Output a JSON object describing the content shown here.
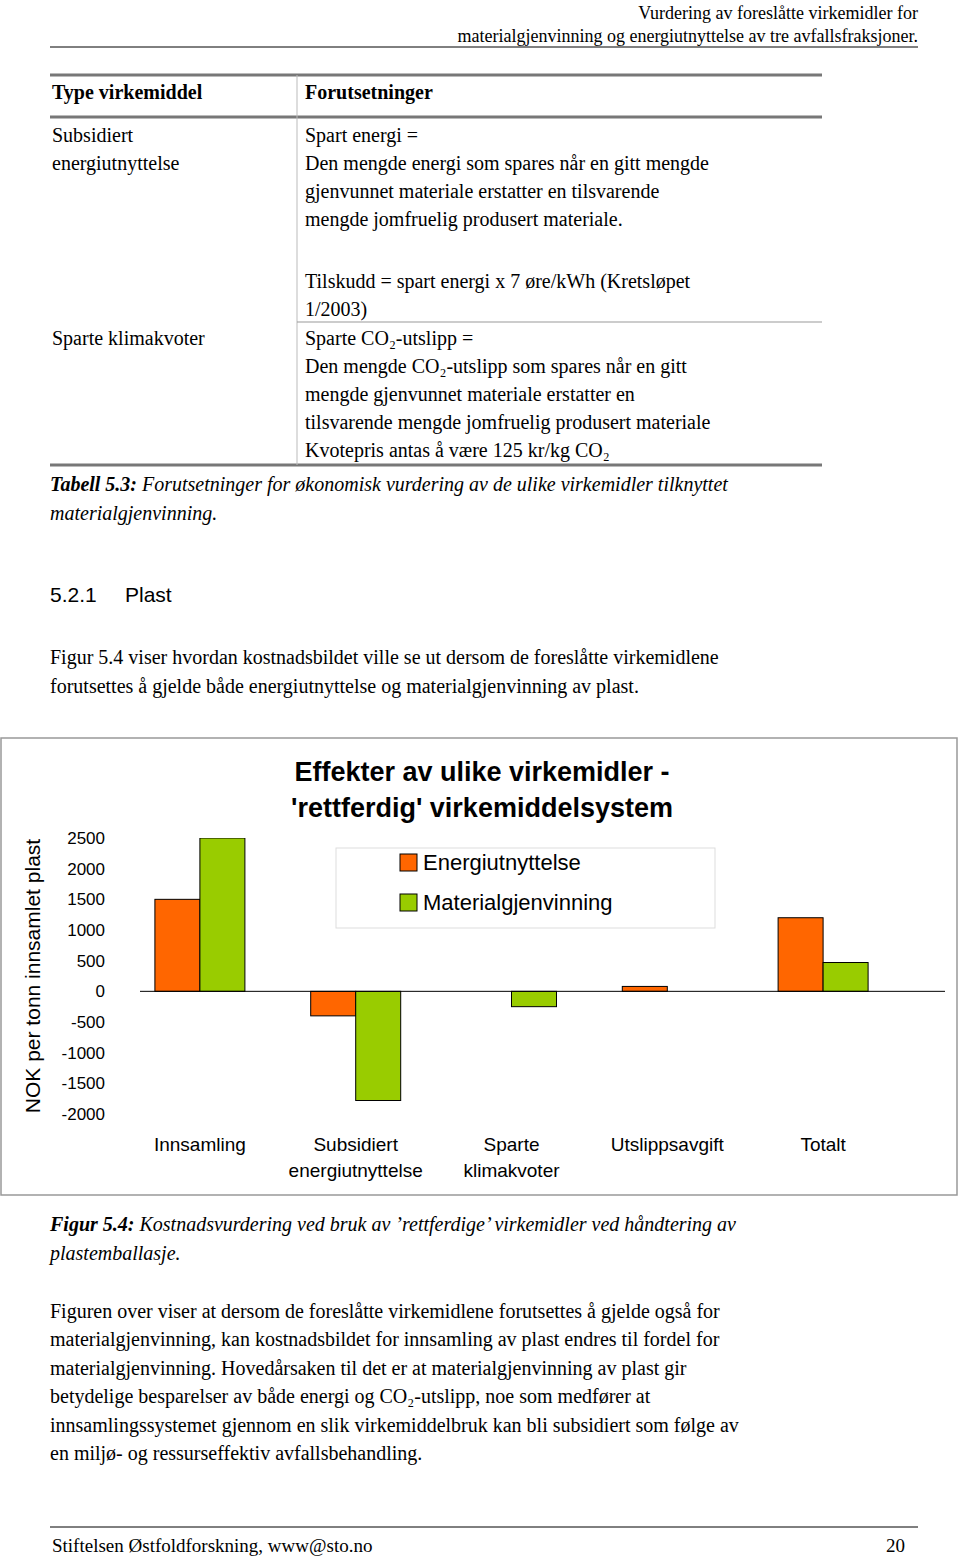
{
  "header": {
    "lines": [
      "Vurdering av foreslåtte virkemidler for",
      "materialgjenvinning og energiutnyttelse av tre avfallsfraksjoner."
    ]
  },
  "table": {
    "headers": [
      "Type virkemiddel",
      "Forutsetninger"
    ],
    "rows": [
      {
        "type": [
          "Subsidiert",
          "energiutnyttelse"
        ],
        "conditions": [
          [
            "Spart energi =",
            "Den mengde energi som spares når en gitt mengde",
            "gjenvunnet materiale erstatter en tilsvarende",
            "mengde jomfruelig produsert materiale."
          ],
          [
            "Tilskudd = spart energi x 7 øre/kWh (Kretsløpet",
            "1/2003)"
          ]
        ]
      },
      {
        "type": [
          "Sparte klimakvoter"
        ],
        "conditions": [
          [
            "Sparte CO₂-utslipp =",
            "Den mengde CO₂-utslipp som spares når en gitt",
            "mengde gjenvunnet materiale erstatter en",
            "tilsvarende mengde jomfruelig produsert materiale",
            "Kvotepris antas å være 125 kr/kg CO₂"
          ]
        ]
      }
    ]
  },
  "table_caption": {
    "label": "Tabell 5.3:",
    "lines": [
      "Forutsetninger for økonomisk vurdering av de ulike virkemidler tilknyttet",
      "materialgjenvinning."
    ]
  },
  "section": {
    "number": "5.2.1",
    "title": "Plast"
  },
  "intro": {
    "lines": [
      "Figur 5.4 viser hvordan kostnadsbildet ville se ut dersom de foreslåtte virkemidlene",
      "forutsettes å gjelde både energiutnyttelse og materialgjenvinning av plast."
    ]
  },
  "chart_data": {
    "type": "bar",
    "title": [
      "Effekter av ulike virkemidler -",
      "'rettferdig' virkemiddelsystem"
    ],
    "y_label": "NOK per tonn innsamlet plast",
    "categories": [
      "Innsamling",
      "Subsidiert energiutnyttelse",
      "Sparte klimakvoter",
      "Utslippsavgift",
      "Totalt"
    ],
    "series": [
      {
        "name": "Energiutnyttelse",
        "color": "#ff6600",
        "values": [
          1500,
          -400,
          0,
          80,
          1200
        ]
      },
      {
        "name": "Materialgjenvinning",
        "color": "#99cc00",
        "values": [
          2500,
          -1780,
          -250,
          0,
          470
        ]
      }
    ],
    "ylim": [
      -2000,
      2500
    ],
    "yticks": [
      -2000,
      -1500,
      -1000,
      -500,
      0,
      500,
      1000,
      1500,
      2000,
      2500
    ],
    "legend": "top",
    "grid": false
  },
  "figure_caption": {
    "label": "Figur 5.4:",
    "lines": [
      "Kostnadsvurdering ved bruk av ’rettferdige’ virkemidler ved håndtering av",
      "plastemballasje."
    ]
  },
  "body": {
    "lines": [
      "Figuren over viser at dersom de foreslåtte virkemidlene forutsettes å gjelde også for",
      "materialgjenvinning, kan kostnadsbildet for innsamling av plast endres til fordel for",
      "materialgjenvinning. Hovedårsaken til det er at materialgjenvinning av plast gir",
      "betydelige besparelser av både energi og CO₂-utslipp, noe som medfører at",
      "innsamlingssystemet gjennom en slik virkemiddelbruk kan bli subsidiert som følge av",
      "en miljø- og ressurseffektiv avfallsbehandling."
    ]
  },
  "footer": {
    "left": "Stiftelsen Østfoldforskning, www@sto.no",
    "page": "20"
  }
}
